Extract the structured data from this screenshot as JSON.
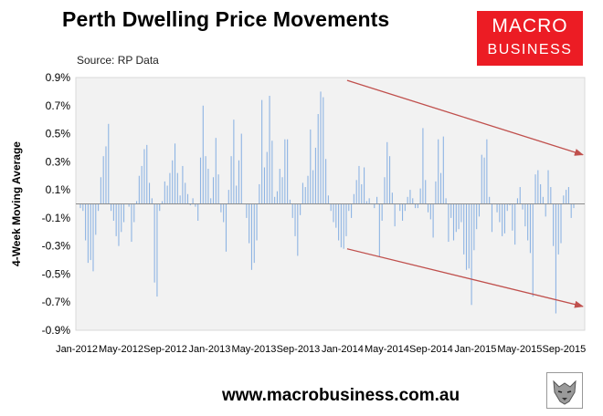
{
  "header": {
    "title": "Perth Dwelling Price Movements",
    "source": "Source: RP Data"
  },
  "logo": {
    "line1": "MACRO",
    "line2": "BUSINESS"
  },
  "footer": {
    "url": "www.macrobusiness.com.au"
  },
  "colors": {
    "bar": "#8eb4e3",
    "arrow": "#c0504d",
    "plot_bg": "#f2f2f2",
    "logo_bg": "#ec1c24"
  },
  "chart_data": {
    "type": "bar",
    "ylabel": "4-Week Moving Average",
    "xlabel": "",
    "ylim": [
      -0.9,
      0.9
    ],
    "y_ticks": [
      "0.9%",
      "0.7%",
      "0.5%",
      "0.3%",
      "0.1%",
      "-0.1%",
      "-0.3%",
      "-0.5%",
      "-0.7%",
      "-0.9%"
    ],
    "x_ticks": [
      "Jan-2012",
      "May-2012",
      "Sep-2012",
      "Jan-2013",
      "May-2013",
      "Sep-2013",
      "Jan-2014",
      "May-2014",
      "Sep-2014",
      "Jan-2015",
      "May-2015",
      "Sep-2015"
    ],
    "grid": false,
    "x_start": "2012-01",
    "x_frequency": "weekly",
    "values": [
      -0.03,
      -0.05,
      -0.26,
      -0.42,
      -0.4,
      -0.48,
      -0.22,
      -0.05,
      0.19,
      0.34,
      0.41,
      0.57,
      -0.05,
      -0.12,
      -0.23,
      -0.3,
      -0.2,
      -0.13,
      0.0,
      -0.02,
      -0.27,
      -0.13,
      0.02,
      0.2,
      0.27,
      0.39,
      0.42,
      0.15,
      0.04,
      -0.56,
      -0.66,
      -0.05,
      0.02,
      0.16,
      0.13,
      0.22,
      0.31,
      0.43,
      0.22,
      0.06,
      0.27,
      0.15,
      0.07,
      -0.01,
      0.04,
      -0.02,
      -0.12,
      0.33,
      0.7,
      0.34,
      0.25,
      0.04,
      0.19,
      0.47,
      0.21,
      -0.06,
      -0.13,
      -0.34,
      0.1,
      0.34,
      0.6,
      0.13,
      0.31,
      0.5,
      0.0,
      -0.1,
      -0.28,
      -0.47,
      -0.42,
      -0.26,
      0.14,
      0.74,
      0.26,
      0.37,
      0.77,
      0.45,
      0.05,
      0.09,
      0.25,
      0.19,
      0.46,
      0.46,
      0.03,
      -0.1,
      -0.23,
      -0.37,
      -0.08,
      0.15,
      0.12,
      0.2,
      0.53,
      0.24,
      0.4,
      0.64,
      0.8,
      0.76,
      0.32,
      0.06,
      -0.05,
      -0.13,
      -0.17,
      -0.26,
      -0.31,
      -0.32,
      -0.23,
      -0.05,
      -0.1,
      0.07,
      0.17,
      0.27,
      0.14,
      0.26,
      0.02,
      0.04,
      0.0,
      -0.03,
      0.05,
      -0.38,
      -0.12,
      0.19,
      0.44,
      0.34,
      0.08,
      -0.16,
      0.0,
      -0.05,
      -0.12,
      -0.05,
      0.05,
      0.1,
      0.04,
      -0.03,
      -0.03,
      0.11,
      0.54,
      0.17,
      -0.06,
      -0.11,
      -0.24,
      0.16,
      0.46,
      0.22,
      0.48,
      0.04,
      -0.27,
      -0.1,
      -0.26,
      -0.2,
      -0.18,
      -0.13,
      -0.36,
      -0.47,
      -0.46,
      -0.72,
      -0.33,
      -0.18,
      -0.09,
      0.35,
      0.33,
      0.46,
      0.05,
      -0.2,
      0.0,
      -0.06,
      -0.13,
      -0.23,
      -0.21,
      -0.05,
      -0.01,
      -0.19,
      -0.29,
      0.04,
      0.12,
      -0.04,
      -0.16,
      -0.26,
      -0.35,
      -0.66,
      0.21,
      0.24,
      0.14,
      0.05,
      -0.09,
      0.24,
      0.12,
      -0.3,
      -0.78,
      -0.36,
      -0.28,
      0.06,
      0.1,
      0.12,
      -0.1,
      -0.03
    ],
    "annotations": [
      {
        "type": "trend-arrow",
        "from": {
          "x": "Jan-2014",
          "y": 0.88
        },
        "to": {
          "x": "Dec-2015",
          "y": 0.35
        }
      },
      {
        "type": "trend-arrow",
        "from": {
          "x": "Jan-2014",
          "y": -0.32
        },
        "to": {
          "x": "Dec-2015",
          "y": -0.73
        }
      }
    ]
  }
}
